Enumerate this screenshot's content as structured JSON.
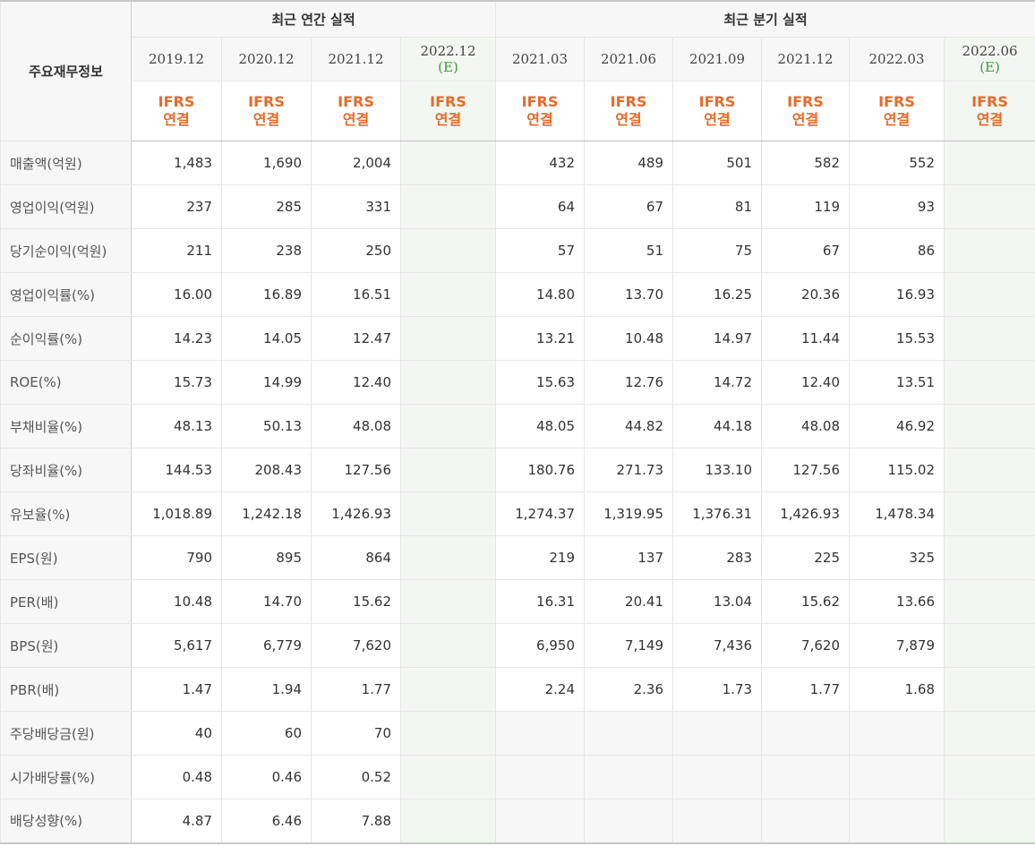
{
  "header": {
    "metric_col": "주요재무정보",
    "annual_title": "최근 연간 실적",
    "quarter_title": "최근 분기 실적",
    "annual_periods": [
      "2019.12",
      "2020.12",
      "2021.12",
      "2022.12"
    ],
    "quarter_periods": [
      "2021.03",
      "2021.06",
      "2021.09",
      "2021.12",
      "2022.03",
      "2022.06"
    ],
    "estimate_mark": "(E)",
    "ifrs_line1": "IFRS",
    "ifrs_line2": "연결"
  },
  "rows": [
    {
      "label": "매출액(억원)",
      "annual": [
        "1,483",
        "1,690",
        "2,004",
        ""
      ],
      "quarter": [
        "432",
        "489",
        "501",
        "582",
        "552",
        ""
      ]
    },
    {
      "label": "영업이익(억원)",
      "annual": [
        "237",
        "285",
        "331",
        ""
      ],
      "quarter": [
        "64",
        "67",
        "81",
        "119",
        "93",
        ""
      ]
    },
    {
      "label": "당기순이익(억원)",
      "annual": [
        "211",
        "238",
        "250",
        ""
      ],
      "quarter": [
        "57",
        "51",
        "75",
        "67",
        "86",
        ""
      ]
    },
    {
      "label": "영업이익률(%)",
      "annual": [
        "16.00",
        "16.89",
        "16.51",
        ""
      ],
      "quarter": [
        "14.80",
        "13.70",
        "16.25",
        "20.36",
        "16.93",
        ""
      ]
    },
    {
      "label": "순이익률(%)",
      "annual": [
        "14.23",
        "14.05",
        "12.47",
        ""
      ],
      "quarter": [
        "13.21",
        "10.48",
        "14.97",
        "11.44",
        "15.53",
        ""
      ]
    },
    {
      "label": "ROE(%)",
      "annual": [
        "15.73",
        "14.99",
        "12.40",
        ""
      ],
      "quarter": [
        "15.63",
        "12.76",
        "14.72",
        "12.40",
        "13.51",
        ""
      ]
    },
    {
      "label": "부채비율(%)",
      "annual": [
        "48.13",
        "50.13",
        "48.08",
        ""
      ],
      "quarter": [
        "48.05",
        "44.82",
        "44.18",
        "48.08",
        "46.92",
        ""
      ]
    },
    {
      "label": "당좌비율(%)",
      "annual": [
        "144.53",
        "208.43",
        "127.56",
        ""
      ],
      "quarter": [
        "180.76",
        "271.73",
        "133.10",
        "127.56",
        "115.02",
        ""
      ]
    },
    {
      "label": "유보율(%)",
      "annual": [
        "1,018.89",
        "1,242.18",
        "1,426.93",
        ""
      ],
      "quarter": [
        "1,274.37",
        "1,319.95",
        "1,376.31",
        "1,426.93",
        "1,478.34",
        ""
      ]
    },
    {
      "label": "EPS(원)",
      "annual": [
        "790",
        "895",
        "864",
        ""
      ],
      "quarter": [
        "219",
        "137",
        "283",
        "225",
        "325",
        ""
      ]
    },
    {
      "label": "PER(배)",
      "annual": [
        "10.48",
        "14.70",
        "15.62",
        ""
      ],
      "quarter": [
        "16.31",
        "20.41",
        "13.04",
        "15.62",
        "13.66",
        ""
      ]
    },
    {
      "label": "BPS(원)",
      "annual": [
        "5,617",
        "6,779",
        "7,620",
        ""
      ],
      "quarter": [
        "6,950",
        "7,149",
        "7,436",
        "7,620",
        "7,879",
        ""
      ]
    },
    {
      "label": "PBR(배)",
      "annual": [
        "1.47",
        "1.94",
        "1.77",
        ""
      ],
      "quarter": [
        "2.24",
        "2.36",
        "1.73",
        "1.77",
        "1.68",
        ""
      ]
    },
    {
      "label": "주당배당금(원)",
      "annual": [
        "40",
        "60",
        "70",
        ""
      ],
      "quarter": [
        "",
        "",
        "",
        "",
        "",
        ""
      ]
    },
    {
      "label": "시가배당률(%)",
      "annual": [
        "0.48",
        "0.46",
        "0.52",
        ""
      ],
      "quarter": [
        "",
        "",
        "",
        "",
        "",
        ""
      ]
    },
    {
      "label": "배당성향(%)",
      "annual": [
        "4.87",
        "6.46",
        "7.88",
        ""
      ],
      "quarter": [
        "",
        "",
        "",
        "",
        "",
        ""
      ]
    }
  ]
}
